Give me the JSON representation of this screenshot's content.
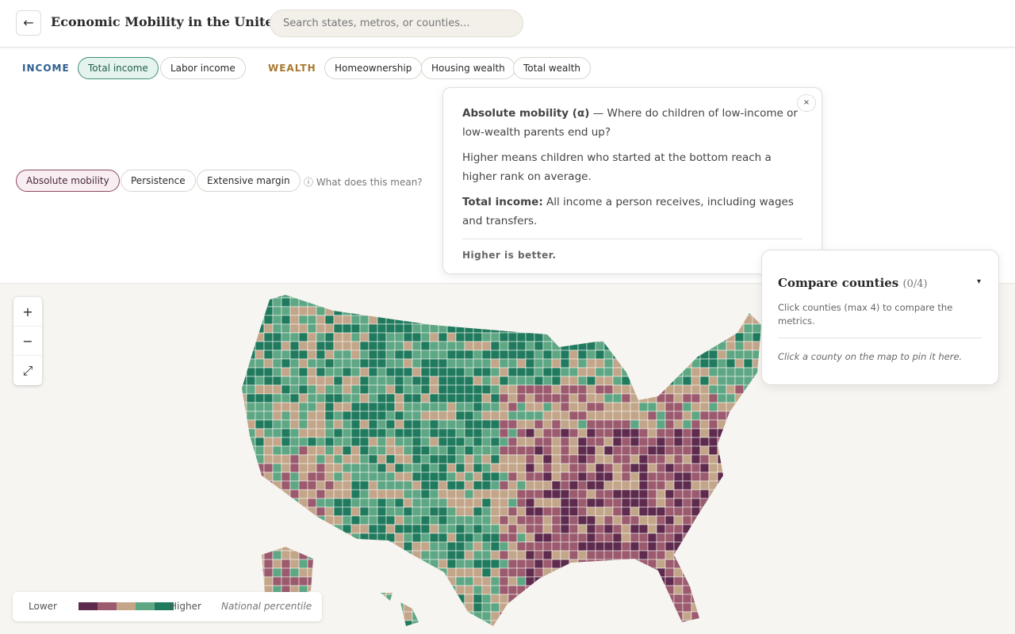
{
  "header": {
    "back": "←",
    "title": "Economic Mobility in the United ...",
    "search_placeholder": "Search states, metros, or counties..."
  },
  "filters": {
    "income_label": "INCOME",
    "income_options": [
      "Total income",
      "Labor income"
    ],
    "wealth_label": "WEALTH",
    "wealth_options": [
      "Homeownership",
      "Housing wealth",
      "Total wealth"
    ]
  },
  "metrics": {
    "options": [
      "Absolute mobility",
      "Persistence",
      "Extensive margin"
    ],
    "help": "ⓘ What does this mean?"
  },
  "tooltip": {
    "close": "×",
    "title": "Absolute mobility (α)",
    "title_rest": "— Where do children of low-income or low-wealth parents end up?",
    "text": "Higher means children who started at the bottom reach a higher rank on average.",
    "term": "Total income:",
    "term_text": "All income a person receives, including wages and transfers.",
    "footer": "Higher is better."
  },
  "compare": {
    "title": "Compare counties",
    "count": "(0/4)",
    "toggle": "▾",
    "description": "Click counties (max 4) to compare the metrics.",
    "empty": "Click a county on the map to pin it here."
  },
  "zoom": {
    "in": "+",
    "out": "−",
    "reset": "⤢"
  },
  "legend": {
    "low": "Lower",
    "high": "Higher",
    "note": "National percentile",
    "colors": [
      "#5e2a4e",
      "#9b5a6e",
      "#c3a68a",
      "#5ea784",
      "#1f7a5e"
    ]
  }
}
